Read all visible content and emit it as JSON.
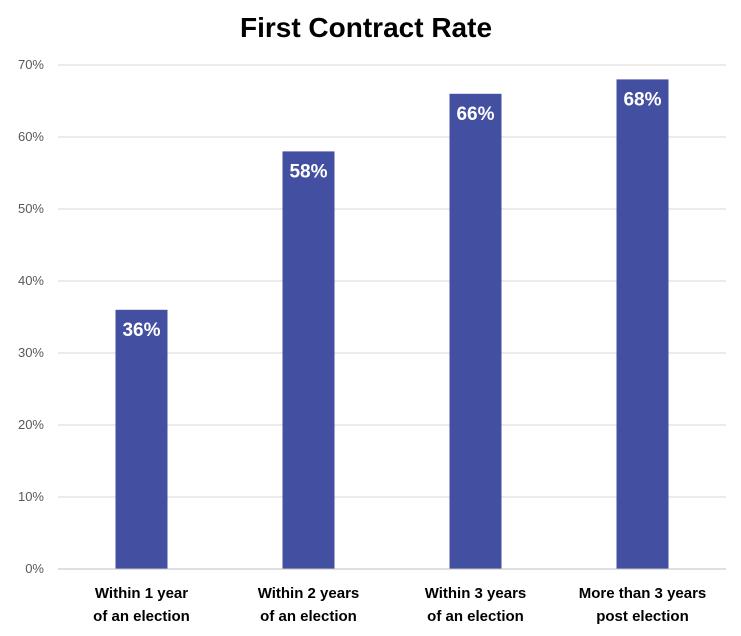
{
  "chart_data": {
    "type": "bar",
    "title": "First Contract Rate",
    "categories": [
      [
        "Within 1 year",
        "of an election"
      ],
      [
        "Within 2 years",
        "of an election"
      ],
      [
        "Within 3 years",
        "of an election"
      ],
      [
        "More than 3 years",
        "post election"
      ]
    ],
    "values": [
      36,
      58,
      66,
      68
    ],
    "data_labels": [
      "36%",
      "58%",
      "66%",
      "68%"
    ],
    "y_ticks": [
      "0%",
      "10%",
      "20%",
      "30%",
      "40%",
      "50%",
      "60%",
      "70%"
    ],
    "ylim": [
      0,
      70
    ],
    "grid": true,
    "legend": "none",
    "colors": {
      "bar": "#434fa1"
    }
  }
}
